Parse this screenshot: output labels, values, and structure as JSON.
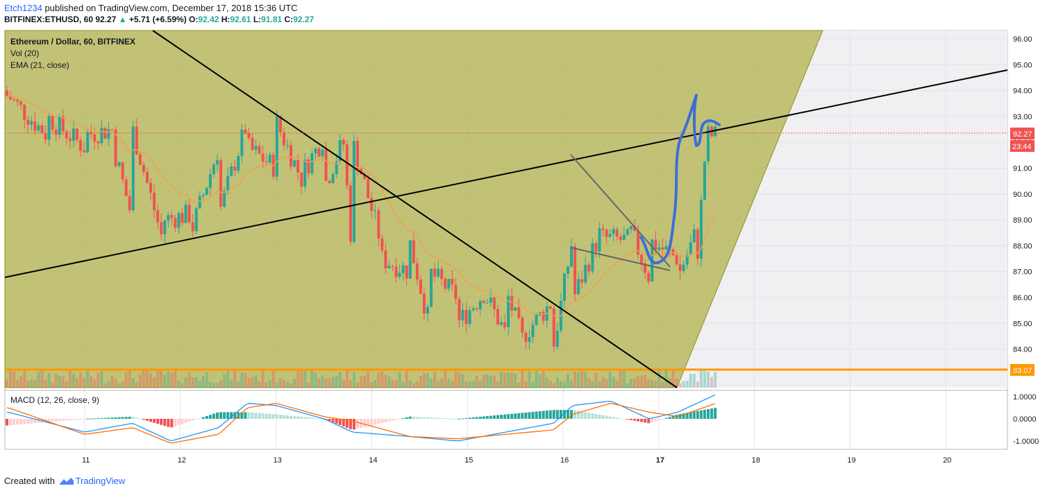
{
  "header": {
    "author": "Etch1234",
    "published": " published on TradingView.com, December 17, 2018 15:36 UTC",
    "symbol": "BITFINEX:ETHUSD, 60",
    "price": "92.27",
    "change": "+5.71 (+6.59%)",
    "o_label": "O:",
    "o_val": "92.42",
    "h_label": "H:",
    "h_val": "92.61",
    "l_label": "L:",
    "l_val": "91.81",
    "c_label": "C:",
    "c_val": "92.27"
  },
  "legend": {
    "title": "Ethereum / Dollar, 60, BITFINEX",
    "vol": "Vol (20)",
    "ema": "EMA (21, close)",
    "macd": "MACD (12, 26, close, 9)"
  },
  "footer": {
    "created": "Created with",
    "brand": "TradingView"
  },
  "price_badges": {
    "last": "92.27",
    "countdown": "23:44",
    "support": "83.07"
  },
  "colors": {
    "up": "#26a69a",
    "down": "#ef5350",
    "wedge": "#a7a62a",
    "ema": "#f0a050",
    "support": "#ff9800",
    "annotation": "#3b6fd8",
    "macd_line": "#2196f3",
    "signal_line": "#ff6d00"
  },
  "chart_data": {
    "type": "candlestick",
    "title": "Ethereum / Dollar, 60, BITFINEX",
    "y_ticks": [
      "96.00",
      "95.00",
      "94.00",
      "93.00",
      "92.00",
      "91.00",
      "90.00",
      "89.00",
      "88.00",
      "87.00",
      "86.00",
      "85.00",
      "84.00"
    ],
    "x_ticks": [
      "11",
      "12",
      "13",
      "14",
      "15",
      "16",
      "17",
      "18",
      "19",
      "20"
    ],
    "ylim": [
      83.5,
      96.3
    ],
    "macd_ticks": [
      "1.0000",
      "0.0000",
      "-1.0000"
    ],
    "support_level": 83.07,
    "last_price": 92.27,
    "ohlc_days": [
      {
        "day": 10.2,
        "o": 93.8,
        "c": 93.0
      },
      {
        "day": 10.6,
        "o": 93.0,
        "c": 92.3
      },
      {
        "day": 11.0,
        "o": 92.3,
        "c": 91.8
      },
      {
        "day": 11.3,
        "o": 91.8,
        "c": 92.5
      },
      {
        "day": 11.5,
        "o": 92.5,
        "c": 89.0
      },
      {
        "day": 11.8,
        "o": 89.0,
        "c": 88.4
      },
      {
        "day": 12.1,
        "o": 88.4,
        "c": 89.2
      },
      {
        "day": 12.4,
        "o": 89.2,
        "c": 91.8
      },
      {
        "day": 12.7,
        "o": 91.8,
        "c": 92.8
      },
      {
        "day": 13.0,
        "o": 92.8,
        "c": 91.0
      },
      {
        "day": 13.3,
        "o": 91.0,
        "c": 90.3
      },
      {
        "day": 13.5,
        "o": 90.3,
        "c": 92.2
      },
      {
        "day": 13.7,
        "o": 92.2,
        "c": 92.0
      },
      {
        "day": 13.8,
        "o": 92.0,
        "c": 87.5
      },
      {
        "day": 14.1,
        "o": 87.5,
        "c": 88.1
      },
      {
        "day": 14.4,
        "o": 88.1,
        "c": 87.0
      },
      {
        "day": 14.6,
        "o": 87.0,
        "c": 85.0
      },
      {
        "day": 14.9,
        "o": 85.0,
        "c": 86.0
      },
      {
        "day": 15.2,
        "o": 86.0,
        "c": 86.3
      },
      {
        "day": 15.4,
        "o": 86.3,
        "c": 84.6
      },
      {
        "day": 15.6,
        "o": 84.6,
        "c": 84.1
      },
      {
        "day": 15.9,
        "o": 84.1,
        "c": 85.9
      },
      {
        "day": 16.1,
        "o": 85.9,
        "c": 88.3
      },
      {
        "day": 16.4,
        "o": 88.3,
        "c": 88.6
      },
      {
        "day": 16.7,
        "o": 88.6,
        "c": 88.2
      },
      {
        "day": 16.9,
        "o": 88.2,
        "c": 86.8
      },
      {
        "day": 17.2,
        "o": 86.8,
        "c": 87.5
      },
      {
        "day": 17.4,
        "o": 87.5,
        "c": 88.6
      },
      {
        "day": 17.5,
        "o": 88.6,
        "c": 92.27
      }
    ],
    "macd": [
      {
        "day": 10.2,
        "hist": -0.3,
        "macd": 0.3,
        "signal": 0.5
      },
      {
        "day": 11.0,
        "hist": 0.0,
        "macd": -0.6,
        "signal": -0.7
      },
      {
        "day": 11.5,
        "hist": 0.1,
        "macd": -0.2,
        "signal": -0.4
      },
      {
        "day": 11.9,
        "hist": -0.4,
        "macd": -1.0,
        "signal": -1.1
      },
      {
        "day": 12.4,
        "hist": 0.3,
        "macd": -0.4,
        "signal": -0.7
      },
      {
        "day": 12.7,
        "hist": 0.3,
        "macd": 0.7,
        "signal": 0.5
      },
      {
        "day": 13.0,
        "hist": 0.2,
        "macd": 0.6,
        "signal": 0.7
      },
      {
        "day": 13.5,
        "hist": 0.0,
        "macd": 0.0,
        "signal": 0.1
      },
      {
        "day": 13.8,
        "hist": -0.5,
        "macd": -0.6,
        "signal": -0.1
      },
      {
        "day": 14.4,
        "hist": 0.1,
        "macd": -0.8,
        "signal": -0.8
      },
      {
        "day": 14.9,
        "hist": 0.0,
        "macd": -1.0,
        "signal": -0.9
      },
      {
        "day": 15.4,
        "hist": 0.2,
        "macd": -0.6,
        "signal": -0.7
      },
      {
        "day": 15.9,
        "hist": 0.4,
        "macd": -0.2,
        "signal": -0.5
      },
      {
        "day": 16.1,
        "hist": 0.4,
        "macd": 0.6,
        "signal": 0.2
      },
      {
        "day": 16.5,
        "hist": 0.1,
        "macd": 0.8,
        "signal": 0.7
      },
      {
        "day": 16.9,
        "hist": -0.2,
        "macd": 0.0,
        "signal": 0.3
      },
      {
        "day": 17.2,
        "hist": 0.2,
        "macd": 0.3,
        "signal": 0.1
      },
      {
        "day": 17.6,
        "hist": 0.5,
        "macd": 1.1,
        "signal": 0.7
      }
    ]
  }
}
